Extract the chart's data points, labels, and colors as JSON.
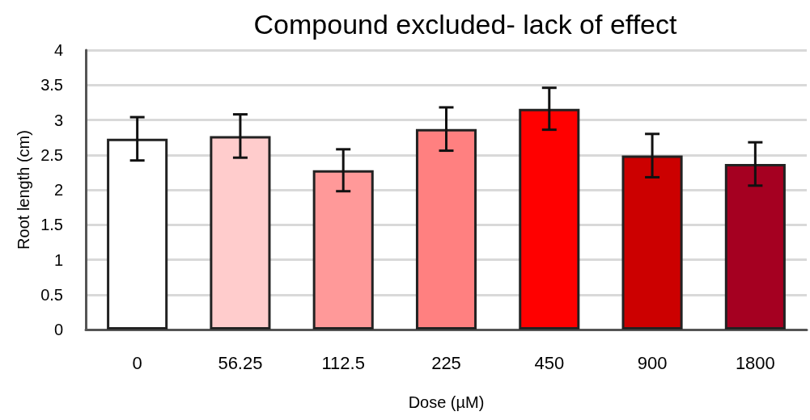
{
  "chart_data": {
    "type": "bar",
    "title": "Compound excluded- lack of effect",
    "xlabel": "Dose (µM)",
    "ylabel": "Root length (cm)",
    "categories": [
      "0",
      "56.25",
      "112.5",
      "225",
      "450",
      "900",
      "1800"
    ],
    "values": [
      2.73,
      2.77,
      2.28,
      2.87,
      3.16,
      2.49,
      2.37
    ],
    "errors": [
      0.31,
      0.31,
      0.3,
      0.31,
      0.3,
      0.31,
      0.31
    ],
    "colors": [
      "#ffffff",
      "#ffcccc",
      "#ff9999",
      "#ff8080",
      "#ff0000",
      "#cc0000",
      "#a50021"
    ],
    "ylim": [
      0,
      4
    ],
    "yticks": [
      0,
      0.5,
      1,
      1.5,
      2,
      2.5,
      3,
      3.5,
      4
    ],
    "grid": "y"
  }
}
